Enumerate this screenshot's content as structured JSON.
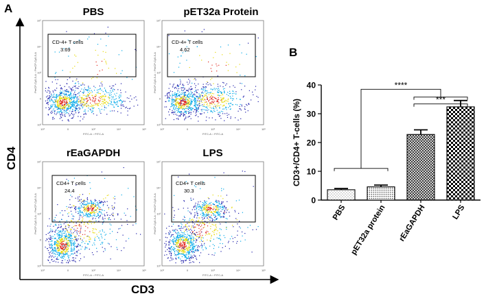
{
  "figure": {
    "panel_a_label": "A",
    "panel_b_label": "B",
    "y_axis_label": "CD4",
    "x_axis_label": "CD3",
    "plot_axis_label_x": "FITC-A :: FITC-A",
    "plot_axis_label_y": "PerCP-Cy5-5-A :: PerCP-Cy5-5-A",
    "plot_tick_labels": [
      "10³",
      "0",
      "10³",
      "10⁴",
      "10⁵"
    ]
  },
  "flow_plots": [
    {
      "title": "PBS",
      "gate_label": "CD-4+ T cells",
      "gate_value": "3.69"
    },
    {
      "title": "pET32a Protein",
      "gate_label": "CD-4+ T cells",
      "gate_value": "4.62"
    },
    {
      "title": "rEaGAPDH",
      "gate_label": "CD4+ T cells",
      "gate_value": "24.4"
    },
    {
      "title": "LPS",
      "gate_label": "CD4+ T cells",
      "gate_value": "30.3"
    }
  ],
  "chart_data": {
    "type": "bar",
    "categories": [
      "PBS",
      "pET32a protein",
      "rEaGAPDH",
      "LPS"
    ],
    "values": [
      3.6,
      4.6,
      22.8,
      32.4
    ],
    "errors": [
      0.4,
      0.6,
      1.6,
      2.2
    ],
    "patterns": [
      "dots",
      "dense-dots",
      "crosshatch",
      "checker"
    ],
    "ylabel": "CD3+/CD4+ T-cells (%)",
    "xlabel": "",
    "ylim": [
      0,
      40
    ],
    "yticks": [
      0,
      10,
      20,
      30,
      40
    ],
    "significance": [
      {
        "label": "****",
        "from": "PBS-pET32a",
        "to": "rEaGAPDH-LPS"
      },
      {
        "label": "***",
        "from": "rEaGAPDH",
        "to": "LPS"
      }
    ]
  },
  "colors": {
    "density_low": "#1a1aa8",
    "density_mid": "#00a8e8",
    "density_hi": "#e6d800",
    "density_peak": "#e0241b",
    "ink": "#000000"
  }
}
